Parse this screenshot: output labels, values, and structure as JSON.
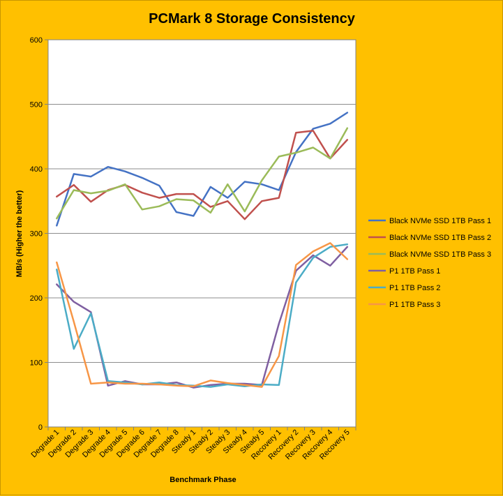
{
  "chart_data": {
    "type": "line",
    "title": "PCMark 8 Storage Consistency",
    "xlabel": "Benchmark Phase",
    "ylabel": "MB/s (Higher the better)",
    "ylim": [
      0,
      600
    ],
    "yticks": [
      0,
      100,
      200,
      300,
      400,
      500,
      600
    ],
    "grid": true,
    "legend_position": "right",
    "categories": [
      "Degrade 1",
      "Degrade 2",
      "Degrade 3",
      "Degrade 4",
      "Degrade 5",
      "Degrade 6",
      "Degrade 7",
      "Degrade 8",
      "Steady 1",
      "Steady 2",
      "Steady 3",
      "Steady 4",
      "Steady 5",
      "Recovery 1",
      "Recovery 2",
      "Recovery 3",
      "Recovery 4",
      "Recovery 5"
    ],
    "series": [
      {
        "name": "Black NVMe SSD 1TB Pass 1",
        "color": "#4472C4",
        "values": [
          312,
          392,
          388,
          403,
          396,
          386,
          374,
          333,
          327,
          372,
          355,
          380,
          376,
          367,
          426,
          462,
          470,
          487
        ]
      },
      {
        "name": "Black NVMe SSD 1TB Pass 2",
        "color": "#C0504D",
        "values": [
          357,
          375,
          349,
          367,
          375,
          363,
          355,
          361,
          361,
          341,
          350,
          322,
          350,
          355,
          456,
          459,
          416,
          445
        ]
      },
      {
        "name": "Black NVMe SSD 1TB Pass 3",
        "color": "#9BBB59",
        "values": [
          323,
          367,
          362,
          366,
          376,
          337,
          342,
          353,
          351,
          332,
          376,
          334,
          382,
          419,
          425,
          433,
          416,
          463
        ]
      },
      {
        "name": "P1 1TB Pass 1",
        "color": "#7F5FA1",
        "values": [
          221,
          194,
          178,
          64,
          71,
          66,
          66,
          69,
          61,
          65,
          67,
          67,
          65,
          160,
          242,
          266,
          250,
          279
        ]
      },
      {
        "name": "P1 1TB Pass 2",
        "color": "#4BACC6",
        "values": [
          244,
          121,
          176,
          71,
          69,
          66,
          69,
          65,
          64,
          62,
          66,
          63,
          66,
          65,
          224,
          262,
          279,
          283
        ]
      },
      {
        "name": "P1 1TB Pass 3",
        "color": "#F79646",
        "values": [
          255,
          163,
          67,
          69,
          67,
          67,
          66,
          64,
          63,
          72,
          68,
          65,
          62,
          110,
          251,
          272,
          285,
          260
        ]
      }
    ]
  }
}
